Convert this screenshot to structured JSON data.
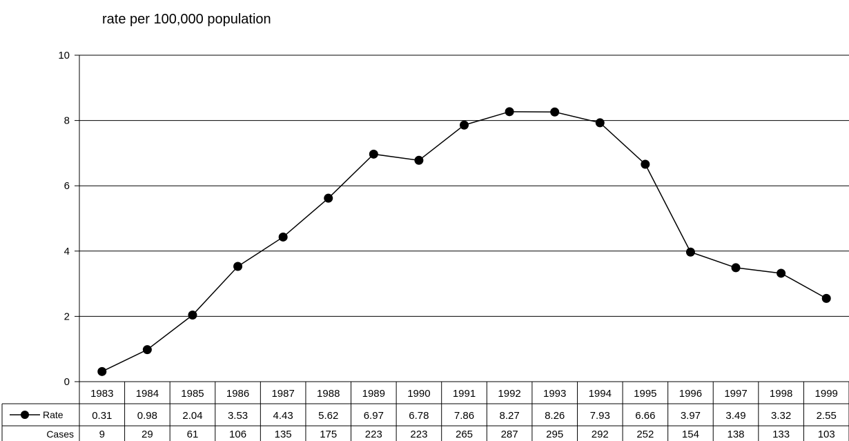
{
  "chart_data": {
    "type": "line",
    "ylabel": "rate per 100,000 population",
    "ylim": [
      0,
      10
    ],
    "yticks": [
      0,
      2,
      4,
      6,
      8,
      10
    ],
    "grid": true,
    "categories": [
      "1983",
      "1984",
      "1985",
      "1986",
      "1987",
      "1988",
      "1989",
      "1990",
      "1991",
      "1992",
      "1993",
      "1994",
      "1995",
      "1996",
      "1997",
      "1998",
      "1999"
    ],
    "series": [
      {
        "name": "Rate",
        "values": [
          0.31,
          0.98,
          2.04,
          3.53,
          4.43,
          5.62,
          6.97,
          6.78,
          7.86,
          8.27,
          8.26,
          7.93,
          6.66,
          3.97,
          3.49,
          3.32,
          2.55
        ],
        "labels": [
          "0.31",
          "0.98",
          "2.04",
          "3.53",
          "4.43",
          "5.62",
          "6.97",
          "6.78",
          "7.86",
          "8.27",
          "8.26",
          "7.93",
          "6.66",
          "3.97",
          "3.49",
          "3.32",
          "2.55"
        ]
      }
    ],
    "table": {
      "rows": [
        {
          "label": "Rate",
          "values": [
            "0.31",
            "0.98",
            "2.04",
            "3.53",
            "4.43",
            "5.62",
            "6.97",
            "6.78",
            "7.86",
            "8.27",
            "8.26",
            "7.93",
            "6.66",
            "3.97",
            "3.49",
            "3.32",
            "2.55"
          ]
        },
        {
          "label": "Cases",
          "values": [
            "9",
            "29",
            "61",
            "106",
            "135",
            "175",
            "223",
            "223",
            "265",
            "287",
            "295",
            "292",
            "252",
            "154",
            "138",
            "133",
            "103"
          ]
        }
      ]
    },
    "line_color": "#000000",
    "marker_color": "#000000"
  }
}
